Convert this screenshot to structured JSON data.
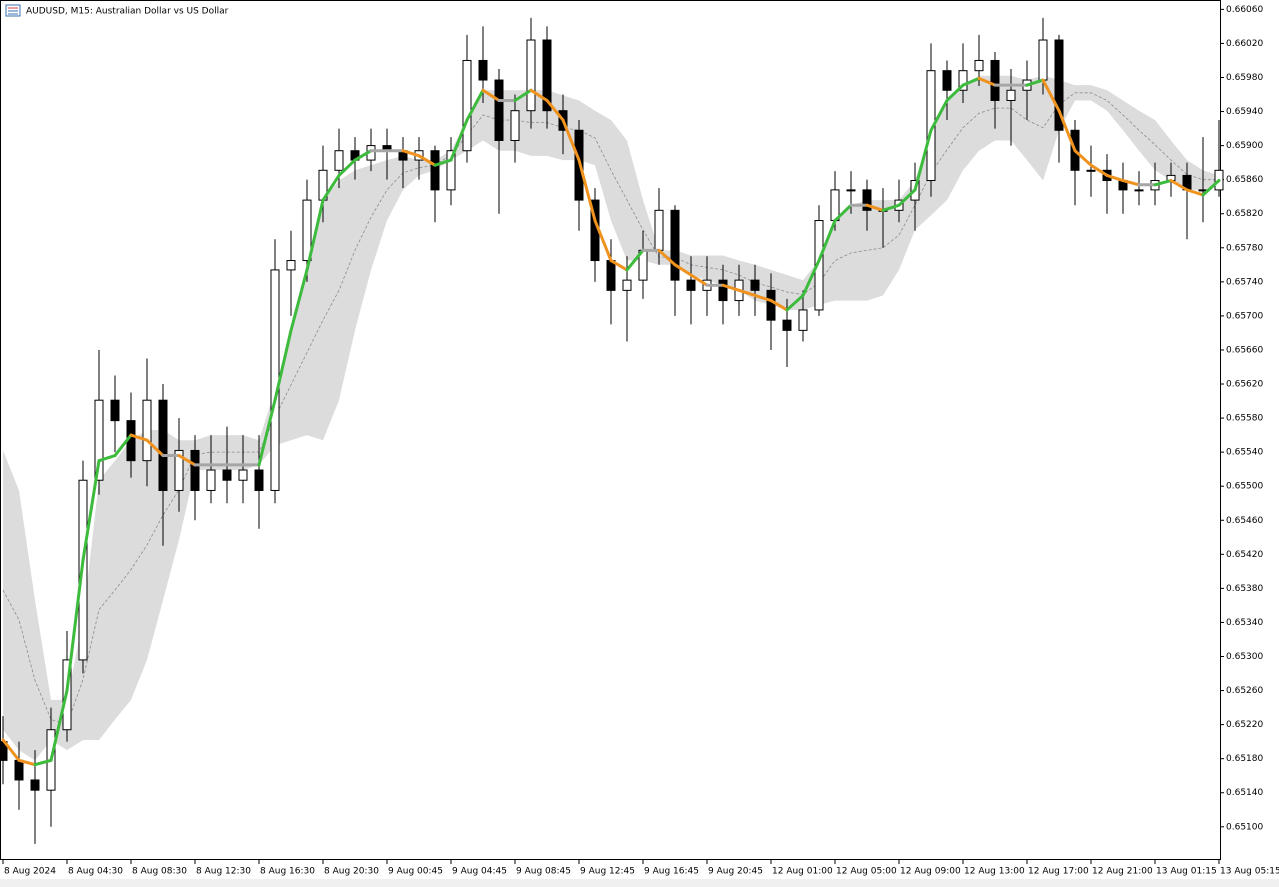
{
  "chart_data": {
    "type": "candlestick",
    "title": "AUDUSD, M15:  Australian Dollar vs US Dollar",
    "categories": [
      "8 Aug 2024",
      null,
      null,
      null,
      "8 Aug 04:30",
      null,
      null,
      null,
      "8 Aug 08:30",
      null,
      null,
      null,
      "8 Aug 12:30",
      null,
      null,
      null,
      "8 Aug 16:30",
      null,
      null,
      null,
      "8 Aug 20:30",
      null,
      null,
      null,
      "9 Aug 00:45",
      null,
      null,
      null,
      "9 Aug 04:45",
      null,
      null,
      null,
      "9 Aug 08:45",
      null,
      null,
      null,
      "9 Aug 12:45",
      null,
      null,
      null,
      "9 Aug 16:45",
      null,
      null,
      null,
      "9 Aug 20:45",
      null,
      null,
      null,
      "12 Aug 01:00",
      null,
      null,
      null,
      "12 Aug 05:00",
      null,
      null,
      null,
      "12 Aug 09:00",
      null,
      null,
      null,
      "12 Aug 13:00",
      null,
      null,
      null,
      "12 Aug 17:00",
      null,
      null,
      null,
      "12 Aug 21:00",
      null,
      null,
      null,
      "13 Aug 01:15",
      null,
      null,
      null,
      "13 Aug 05:15"
    ],
    "ohlc": [
      [
        0.652,
        0.6523,
        0.6515,
        0.65178
      ],
      [
        0.65178,
        0.652,
        0.6512,
        0.65155
      ],
      [
        0.65155,
        0.6519,
        0.6508,
        0.65143
      ],
      [
        0.65143,
        0.6524,
        0.651,
        0.65214
      ],
      [
        0.65214,
        0.6533,
        0.652,
        0.65296
      ],
      [
        0.65296,
        0.6553,
        0.6528,
        0.65507
      ],
      [
        0.65507,
        0.6566,
        0.6549,
        0.65601
      ],
      [
        0.65601,
        0.6563,
        0.6554,
        0.65577
      ],
      [
        0.65577,
        0.6561,
        0.6551,
        0.6553
      ],
      [
        0.6553,
        0.6565,
        0.655,
        0.65601
      ],
      [
        0.65601,
        0.6562,
        0.6543,
        0.65495
      ],
      [
        0.65495,
        0.6558,
        0.6547,
        0.65542
      ],
      [
        0.65542,
        0.6556,
        0.6546,
        0.65495
      ],
      [
        0.65495,
        0.6556,
        0.6548,
        0.65519
      ],
      [
        0.65519,
        0.6557,
        0.6548,
        0.65507
      ],
      [
        0.65507,
        0.6556,
        0.6548,
        0.65519
      ],
      [
        0.65519,
        0.6556,
        0.6545,
        0.65495
      ],
      [
        0.65495,
        0.6579,
        0.6548,
        0.65754
      ],
      [
        0.65754,
        0.658,
        0.657,
        0.65765
      ],
      [
        0.65765,
        0.6586,
        0.6574,
        0.65836
      ],
      [
        0.65836,
        0.659,
        0.6581,
        0.65871
      ],
      [
        0.65871,
        0.6592,
        0.6585,
        0.65894
      ],
      [
        0.65894,
        0.6591,
        0.6586,
        0.65883
      ],
      [
        0.65883,
        0.6592,
        0.6587,
        0.659
      ],
      [
        0.659,
        0.6592,
        0.6586,
        0.65894
      ],
      [
        0.65894,
        0.6591,
        0.6585,
        0.65883
      ],
      [
        0.65883,
        0.6591,
        0.6586,
        0.65894
      ],
      [
        0.65894,
        0.659,
        0.6581,
        0.65848
      ],
      [
        0.65848,
        0.6591,
        0.6583,
        0.65894
      ],
      [
        0.65894,
        0.6603,
        0.6588,
        0.66
      ],
      [
        0.66,
        0.6604,
        0.6595,
        0.65977
      ],
      [
        0.65977,
        0.6599,
        0.6582,
        0.65906
      ],
      [
        0.65906,
        0.6596,
        0.6588,
        0.65941
      ],
      [
        0.65941,
        0.6605,
        0.6592,
        0.66024
      ],
      [
        0.66024,
        0.6604,
        0.6592,
        0.65941
      ],
      [
        0.65941,
        0.6596,
        0.6589,
        0.65918
      ],
      [
        0.65918,
        0.6593,
        0.658,
        0.65836
      ],
      [
        0.65836,
        0.6585,
        0.6574,
        0.65765
      ],
      [
        0.65765,
        0.6579,
        0.6569,
        0.6573
      ],
      [
        0.6573,
        0.6577,
        0.6567,
        0.65742
      ],
      [
        0.65742,
        0.658,
        0.6572,
        0.65777
      ],
      [
        0.65777,
        0.6585,
        0.6576,
        0.65824
      ],
      [
        0.65824,
        0.6583,
        0.657,
        0.65742
      ],
      [
        0.65742,
        0.6577,
        0.6569,
        0.6573
      ],
      [
        0.6573,
        0.6577,
        0.657,
        0.65742
      ],
      [
        0.65742,
        0.6576,
        0.6569,
        0.65718
      ],
      [
        0.65718,
        0.6576,
        0.657,
        0.65742
      ],
      [
        0.65742,
        0.6576,
        0.657,
        0.6573
      ],
      [
        0.6573,
        0.6575,
        0.6566,
        0.65695
      ],
      [
        0.65695,
        0.6572,
        0.6564,
        0.65683
      ],
      [
        0.65683,
        0.6573,
        0.6567,
        0.65707
      ],
      [
        0.65707,
        0.6583,
        0.657,
        0.65812
      ],
      [
        0.65812,
        0.6587,
        0.658,
        0.65848
      ],
      [
        0.65848,
        0.6587,
        0.6582,
        0.65848
      ],
      [
        0.65848,
        0.6586,
        0.658,
        0.65824
      ],
      [
        0.65824,
        0.6585,
        0.6578,
        0.65824
      ],
      [
        0.65824,
        0.6586,
        0.6581,
        0.65836
      ],
      [
        0.65836,
        0.6588,
        0.658,
        0.65859
      ],
      [
        0.65859,
        0.6602,
        0.6584,
        0.65988
      ],
      [
        0.65988,
        0.66,
        0.6593,
        0.65965
      ],
      [
        0.65965,
        0.6602,
        0.6595,
        0.65988
      ],
      [
        0.65988,
        0.6603,
        0.6597,
        0.66
      ],
      [
        0.66,
        0.6601,
        0.6592,
        0.65953
      ],
      [
        0.65953,
        0.6599,
        0.659,
        0.65965
      ],
      [
        0.65965,
        0.66,
        0.6593,
        0.65977
      ],
      [
        0.65977,
        0.6605,
        0.6596,
        0.66024
      ],
      [
        0.66024,
        0.6603,
        0.6588,
        0.65918
      ],
      [
        0.65918,
        0.6593,
        0.6583,
        0.65871
      ],
      [
        0.65871,
        0.659,
        0.6584,
        0.65871
      ],
      [
        0.65871,
        0.6589,
        0.6582,
        0.65859
      ],
      [
        0.65859,
        0.6588,
        0.6582,
        0.65848
      ],
      [
        0.65848,
        0.6587,
        0.6583,
        0.65848
      ],
      [
        0.65848,
        0.6588,
        0.6583,
        0.65859
      ],
      [
        0.65859,
        0.6588,
        0.6584,
        0.65865
      ],
      [
        0.65865,
        0.6588,
        0.6579,
        0.65848
      ],
      [
        0.65848,
        0.6591,
        0.6581,
        0.65848
      ],
      [
        0.65848,
        0.6593,
        0.6584,
        0.65871
      ]
    ],
    "up_color": "#ffffff",
    "down_color": "#000000",
    "ylim": [
      0.65061,
      0.66071
    ],
    "yticks": [
      {
        "value": 0.651,
        "label": "0.65100"
      },
      {
        "value": 0.6514,
        "label": "0.65140"
      },
      {
        "value": 0.6518,
        "label": "0.65180"
      },
      {
        "value": 0.6522,
        "label": "0.65220"
      },
      {
        "value": 0.6526,
        "label": "0.65260"
      },
      {
        "value": 0.653,
        "label": "0.65300"
      },
      {
        "value": 0.6534,
        "label": "0.65340"
      },
      {
        "value": 0.6538,
        "label": "0.65380"
      },
      {
        "value": 0.6542,
        "label": "0.65420"
      },
      {
        "value": 0.6546,
        "label": "0.65460"
      },
      {
        "value": 0.655,
        "label": "0.65500"
      },
      {
        "value": 0.6554,
        "label": "0.65540"
      },
      {
        "value": 0.6558,
        "label": "0.65580"
      },
      {
        "value": 0.6562,
        "label": "0.65620"
      },
      {
        "value": 0.6566,
        "label": "0.65660"
      },
      {
        "value": 0.657,
        "label": "0.65700"
      },
      {
        "value": 0.6574,
        "label": "0.65740"
      },
      {
        "value": 0.6578,
        "label": "0.65780"
      },
      {
        "value": 0.6582,
        "label": "0.65820"
      },
      {
        "value": 0.6586,
        "label": "0.65860"
      },
      {
        "value": 0.659,
        "label": "0.65900"
      },
      {
        "value": 0.6594,
        "label": "0.65940"
      },
      {
        "value": 0.6598,
        "label": "0.65980"
      },
      {
        "value": 0.6602,
        "label": "0.66020"
      },
      {
        "value": 0.6606,
        "label": "0.66060"
      }
    ],
    "band": {
      "color": "#dcdcdc",
      "mid_color": "#8c8c8c",
      "upper": [
        0.65542,
        0.65495,
        0.65366,
        0.65249,
        0.65249,
        0.65343,
        0.65507,
        0.6553,
        0.65554,
        0.65566,
        0.65566,
        0.65554,
        0.65554,
        0.6556,
        0.6556,
        0.6556,
        0.65554,
        0.65613,
        0.65683,
        0.65754,
        0.65836,
        0.65859,
        0.65871,
        0.65877,
        0.65883,
        0.65888,
        0.65883,
        0.65883,
        0.65894,
        0.6593,
        0.65965,
        0.65965,
        0.65965,
        0.65965,
        0.65965,
        0.65959,
        0.65953,
        0.65941,
        0.6593,
        0.65906,
        0.65836,
        0.65777,
        0.65777,
        0.65771,
        0.65771,
        0.65771,
        0.65765,
        0.6576,
        0.65754,
        0.65748,
        0.65742,
        0.65765,
        0.65812,
        0.6583,
        0.65836,
        0.65836,
        0.65836,
        0.65859,
        0.65918,
        0.65953,
        0.65971,
        0.65982,
        0.65982,
        0.65982,
        0.65977,
        0.65982,
        0.65977,
        0.65971,
        0.65971,
        0.65965,
        0.65953,
        0.65941,
        0.6593,
        0.65906,
        0.65883,
        0.65871,
        0.65865
      ],
      "lower": [
        0.65214,
        0.6519,
        0.65178,
        0.65202,
        0.6519,
        0.65202,
        0.65202,
        0.65226,
        0.65249,
        0.65296,
        0.65366,
        0.65437,
        0.65519,
        0.65519,
        0.65519,
        0.65519,
        0.65525,
        0.65548,
        0.65554,
        0.6556,
        0.65554,
        0.65601,
        0.65683,
        0.65754,
        0.65812,
        0.65848,
        0.65865,
        0.65871,
        0.65883,
        0.65894,
        0.65906,
        0.65894,
        0.65894,
        0.65888,
        0.65888,
        0.65883,
        0.65883,
        0.65877,
        0.65812,
        0.65765,
        0.65765,
        0.6576,
        0.6576,
        0.65748,
        0.65742,
        0.65736,
        0.6573,
        0.65718,
        0.65713,
        0.65707,
        0.65707,
        0.65713,
        0.65718,
        0.65718,
        0.65718,
        0.65724,
        0.65754,
        0.65801,
        0.65818,
        0.65836,
        0.65871,
        0.65894,
        0.65906,
        0.65906,
        0.65883,
        0.65859,
        0.65918,
        0.65953,
        0.65953,
        0.65941,
        0.65918,
        0.65894,
        0.65871,
        0.65859,
        0.65848,
        0.65848,
        0.65854
      ],
      "mid": [
        0.65378,
        0.65343,
        0.65272,
        0.65226,
        0.6522,
        0.65273,
        0.65355,
        0.65378,
        0.65402,
        0.65431,
        0.65466,
        0.65496,
        0.65537,
        0.6554,
        0.6554,
        0.6554,
        0.6554,
        0.65581,
        0.65619,
        0.65657,
        0.65695,
        0.6573,
        0.65777,
        0.65816,
        0.65848,
        0.65868,
        0.65874,
        0.65877,
        0.65889,
        0.65912,
        0.65936,
        0.6593,
        0.6593,
        0.65927,
        0.65927,
        0.65921,
        0.65918,
        0.65909,
        0.65871,
        0.65836,
        0.65801,
        0.65769,
        0.65769,
        0.6576,
        0.65757,
        0.65754,
        0.65748,
        0.65739,
        0.65734,
        0.65728,
        0.65725,
        0.65739,
        0.65765,
        0.65774,
        0.65777,
        0.6578,
        0.65795,
        0.6583,
        0.65868,
        0.65895,
        0.65921,
        0.65938,
        0.65944,
        0.65944,
        0.6593,
        0.65921,
        0.65948,
        0.65962,
        0.65962,
        0.65953,
        0.65936,
        0.65918,
        0.65901,
        0.65883,
        0.65866,
        0.6586,
        0.6586
      ]
    },
    "ma": {
      "up_color": "#3cbb3c",
      "down_color": "#f0921e",
      "flat_color": "#a6a6a6",
      "values": [
        0.65202,
        0.65178,
        0.65173,
        0.65178,
        0.6526,
        0.65413,
        0.6553,
        0.65536,
        0.6556,
        0.65554,
        0.65536,
        0.65536,
        0.65525,
        0.65525,
        0.65525,
        0.65525,
        0.65525,
        0.65601,
        0.65683,
        0.65754,
        0.65836,
        0.65865,
        0.65883,
        0.65894,
        0.65894,
        0.65894,
        0.65888,
        0.65877,
        0.65883,
        0.6593,
        0.65965,
        0.65953,
        0.65953,
        0.65965,
        0.65953,
        0.6593,
        0.65883,
        0.65812,
        0.65765,
        0.65754,
        0.65777,
        0.65777,
        0.6576,
        0.65748,
        0.65736,
        0.65736,
        0.6573,
        0.65724,
        0.65718,
        0.65707,
        0.65724,
        0.65765,
        0.65812,
        0.6583,
        0.6583,
        0.65824,
        0.6583,
        0.65848,
        0.65918,
        0.65953,
        0.65971,
        0.65979,
        0.65971,
        0.65971,
        0.65971,
        0.65977,
        0.65941,
        0.65894,
        0.65877,
        0.65865,
        0.65859,
        0.65854,
        0.65854,
        0.65859,
        0.65848,
        0.65842,
        0.65859
      ]
    }
  }
}
